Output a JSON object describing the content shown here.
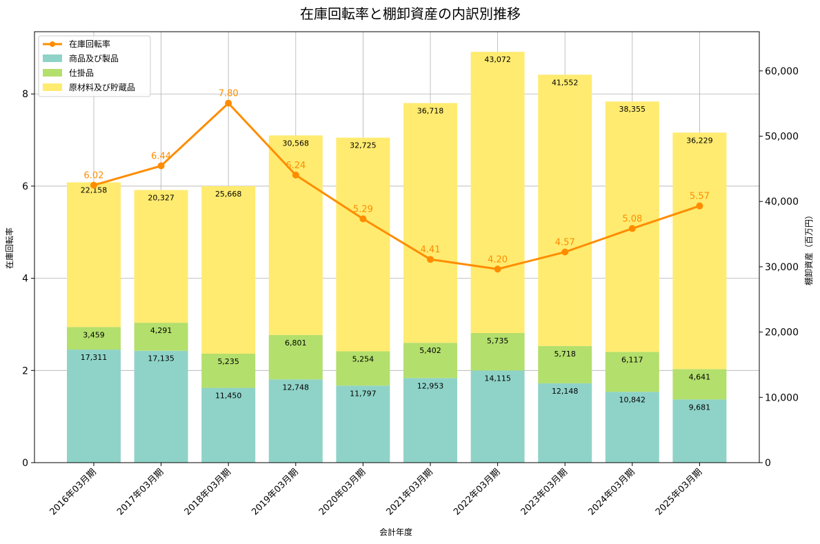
{
  "chart_data": {
    "type": "bar",
    "title": "在庫回転率と棚卸資産の内訳別推移",
    "xlabel": "会計年度",
    "ylabel_left": "在庫回転率",
    "ylabel_right": "棚卸資産（百万円）",
    "categories": [
      "2016年03月期",
      "2017年03月期",
      "2018年03月期",
      "2019年03月期",
      "2020年03月期",
      "2021年03月期",
      "2022年03月期",
      "2023年03月期",
      "2024年03月期",
      "2025年03月期"
    ],
    "left_axis": {
      "min": 0,
      "max": 9.35,
      "ticks": [
        0,
        2,
        4,
        6,
        8
      ]
    },
    "right_axis": {
      "min": 0,
      "max": 66000,
      "ticks": [
        0,
        10000,
        20000,
        30000,
        40000,
        50000,
        60000
      ],
      "tick_labels": [
        "0",
        "10,000",
        "20,000",
        "30,000",
        "40,000",
        "50,000",
        "60,000"
      ]
    },
    "grid": true,
    "legend_position": "top-left",
    "stacked_series": [
      {
        "name": "商品及び製品",
        "color": "#8FD3C8",
        "values": [
          17311,
          17135,
          11450,
          12748,
          11797,
          12953,
          14115,
          12148,
          10842,
          9681
        ],
        "labels": [
          "17,311",
          "17,135",
          "11,450",
          "12,748",
          "11,797",
          "12,953",
          "14,115",
          "12,148",
          "10,842",
          "9,681"
        ]
      },
      {
        "name": "仕掛品",
        "color": "#B3DF6C",
        "values": [
          3459,
          4291,
          5235,
          6801,
          5254,
          5402,
          5735,
          5718,
          6117,
          4641
        ],
        "labels": [
          "3,459",
          "4,291",
          "5,235",
          "6,801",
          "5,254",
          "5,402",
          "5,735",
          "5,718",
          "6,117",
          "4,641"
        ]
      },
      {
        "name": "原材料及び貯蔵品",
        "color": "#FFEB70",
        "values": [
          22158,
          20327,
          25668,
          30568,
          32725,
          36718,
          43072,
          41552,
          38355,
          36229
        ],
        "labels": [
          "22,158",
          "20,327",
          "25,668",
          "30,568",
          "32,725",
          "36,718",
          "43,072",
          "41,552",
          "38,355",
          "36,229"
        ]
      }
    ],
    "line_series": {
      "name": "在庫回転率",
      "color": "#FF8C00",
      "values": [
        6.02,
        6.44,
        7.8,
        6.24,
        5.29,
        4.41,
        4.2,
        4.57,
        5.08,
        5.57
      ],
      "labels": [
        "6.02",
        "6.44",
        "7.80",
        "6.24",
        "5.29",
        "4.41",
        "4.20",
        "4.57",
        "5.08",
        "5.57"
      ]
    }
  }
}
